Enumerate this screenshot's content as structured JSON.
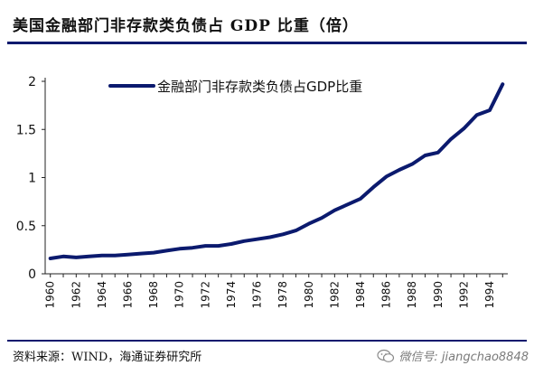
{
  "title": "美国金融部门非存款类负债占 GDP 比重（倍）",
  "source": "资料来源：WIND，海通证券研究所",
  "watermark": "微信号: jiangchao8848",
  "colors": {
    "line": "#0b1a6e",
    "rule": "#0b1a6e"
  },
  "chart_data": {
    "type": "line",
    "title": "美国金融部门非存款类负债占 GDP 比重（倍）",
    "xlabel": "",
    "ylabel": "",
    "ylim": [
      0,
      2
    ],
    "yticks": [
      "0",
      "0.5",
      "1",
      "1.5",
      "2"
    ],
    "xticks": [
      "1960",
      "1962",
      "1964",
      "1966",
      "1968",
      "1970",
      "1972",
      "1974",
      "1976",
      "1978",
      "1980",
      "1982",
      "1984",
      "1986",
      "1988",
      "1990",
      "1992",
      "1994"
    ],
    "legend": "top-left",
    "grid": false,
    "series": [
      {
        "name": "金融部门非存款类负债占GDP比重",
        "x": [
          1960,
          1961,
          1962,
          1963,
          1964,
          1965,
          1966,
          1967,
          1968,
          1969,
          1970,
          1971,
          1972,
          1973,
          1974,
          1975,
          1976,
          1977,
          1978,
          1979,
          1980,
          1981,
          1982,
          1983,
          1984,
          1985,
          1986,
          1987,
          1988,
          1989,
          1990,
          1991,
          1992,
          1993,
          1994,
          1995
        ],
        "values": [
          0.16,
          0.18,
          0.17,
          0.18,
          0.19,
          0.19,
          0.2,
          0.21,
          0.22,
          0.24,
          0.26,
          0.27,
          0.29,
          0.29,
          0.31,
          0.34,
          0.36,
          0.38,
          0.41,
          0.45,
          0.52,
          0.58,
          0.66,
          0.72,
          0.78,
          0.9,
          1.01,
          1.08,
          1.14,
          1.23,
          1.26,
          1.4,
          1.51,
          1.65,
          1.7,
          1.97
        ]
      }
    ]
  }
}
